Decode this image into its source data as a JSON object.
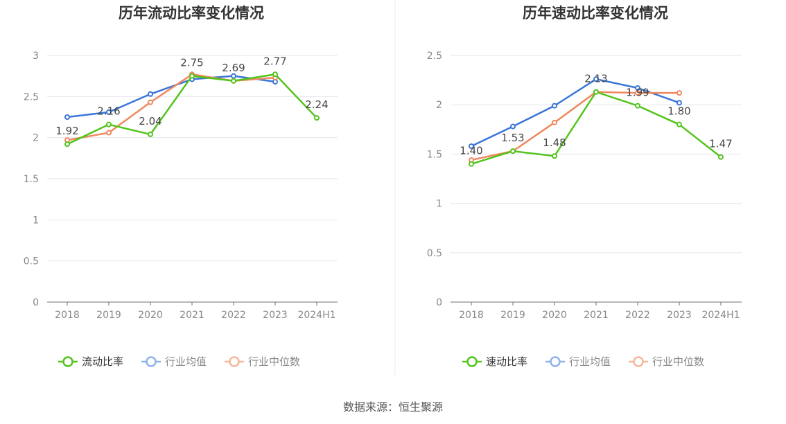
{
  "footer": "数据来源：恒生聚源",
  "colors": {
    "company": "#52c41a",
    "industry_avg": "#3a75d8",
    "industry_median": "#f0875e"
  },
  "chart_data": [
    {
      "type": "line",
      "title": "历年流动比率变化情况",
      "categories": [
        "2018",
        "2019",
        "2020",
        "2021",
        "2022",
        "2023",
        "2024H1"
      ],
      "ylim": [
        0,
        3
      ],
      "yticks": [
        "0",
        "0.5",
        "1",
        "1.5",
        "2",
        "2.5",
        "3"
      ],
      "grid": true,
      "legend_position": "bottom",
      "series": [
        {
          "name": "流动比率",
          "values": [
            1.92,
            2.16,
            2.04,
            2.75,
            2.69,
            2.77,
            2.24
          ],
          "labels": [
            "1.92",
            "2.16",
            "2.04",
            "2.75",
            "2.69",
            "2.77",
            "2.24"
          ]
        },
        {
          "name": "行业均值",
          "values": [
            2.25,
            2.31,
            2.53,
            2.71,
            2.75,
            2.68,
            null
          ]
        },
        {
          "name": "行业中位数",
          "values": [
            1.97,
            2.06,
            2.43,
            2.77,
            2.69,
            2.73,
            null
          ]
        }
      ]
    },
    {
      "type": "line",
      "title": "历年速动比率变化情况",
      "categories": [
        "2018",
        "2019",
        "2020",
        "2021",
        "2022",
        "2023",
        "2024H1"
      ],
      "ylim": [
        0,
        2.5
      ],
      "yticks": [
        "0",
        "0.5",
        "1",
        "1.5",
        "2",
        "2.5"
      ],
      "grid": true,
      "legend_position": "bottom",
      "series": [
        {
          "name": "速动比率",
          "values": [
            1.4,
            1.53,
            1.48,
            2.13,
            1.99,
            1.8,
            1.47
          ],
          "labels": [
            "1.40",
            "1.53",
            "1.48",
            "2.13",
            "1.99",
            "1.80",
            "1.47"
          ]
        },
        {
          "name": "行业均值",
          "values": [
            1.58,
            1.78,
            1.99,
            2.26,
            2.17,
            2.02,
            null
          ]
        },
        {
          "name": "行业中位数",
          "values": [
            1.44,
            1.53,
            1.82,
            2.13,
            2.12,
            2.12,
            null
          ]
        }
      ]
    }
  ]
}
